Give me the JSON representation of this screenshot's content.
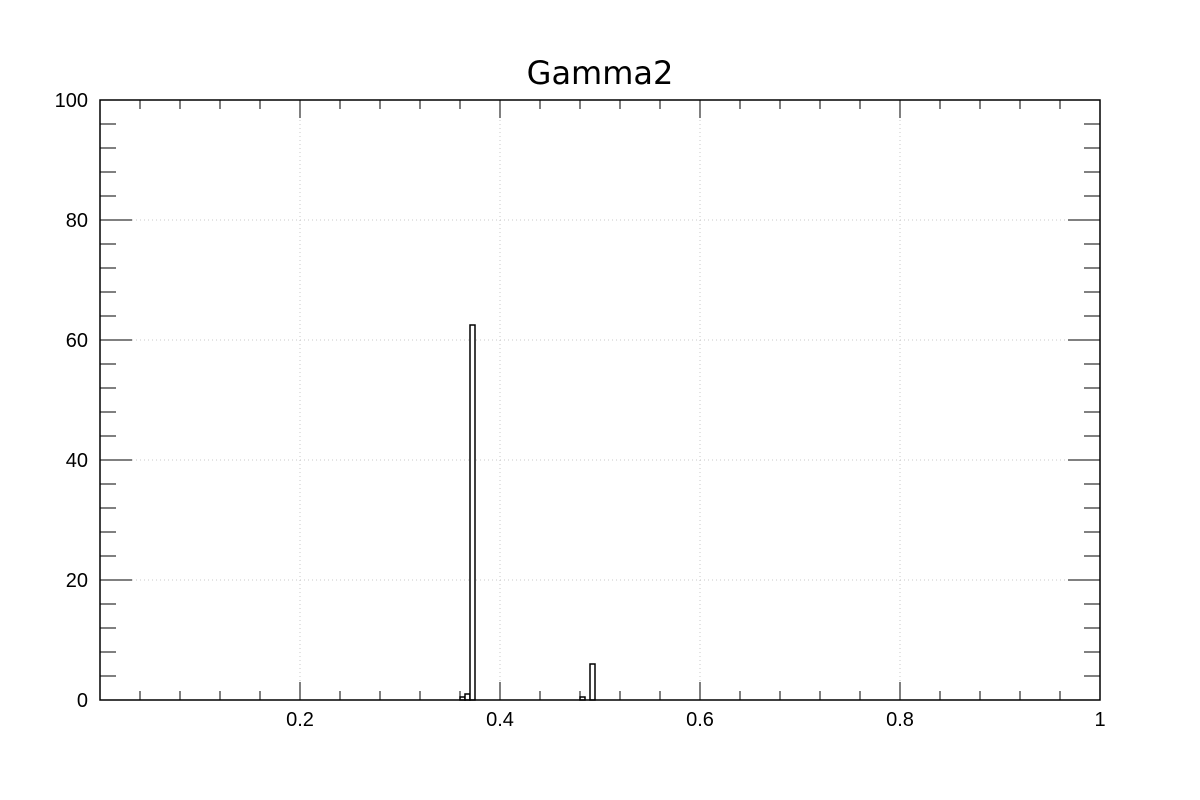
{
  "chart_data": {
    "type": "bar",
    "title": "Gamma2",
    "xlabel": "",
    "ylabel": "",
    "xlim": [
      0.0,
      1.0
    ],
    "ylim": [
      0,
      100
    ],
    "bin_width": 0.005,
    "x_ticks": [
      {
        "value": 0.2,
        "label": "0.2"
      },
      {
        "value": 0.4,
        "label": "0.4"
      },
      {
        "value": 0.6,
        "label": "0.6"
      },
      {
        "value": 0.8,
        "label": "0.8"
      },
      {
        "value": 1.0,
        "label": "1"
      }
    ],
    "y_ticks": [
      {
        "value": 0,
        "label": "0"
      },
      {
        "value": 20,
        "label": "20"
      },
      {
        "value": 40,
        "label": "40"
      },
      {
        "value": 60,
        "label": "60"
      },
      {
        "value": 80,
        "label": "80"
      },
      {
        "value": 100,
        "label": "100"
      }
    ],
    "grid": true,
    "legend": "none",
    "bins": [
      {
        "x0": 0.36,
        "x1": 0.365,
        "value": 0.5
      },
      {
        "x0": 0.365,
        "x1": 0.37,
        "value": 1
      },
      {
        "x0": 0.37,
        "x1": 0.375,
        "value": 62.5
      },
      {
        "x0": 0.48,
        "x1": 0.485,
        "value": 0.5
      },
      {
        "x0": 0.49,
        "x1": 0.495,
        "value": 6
      }
    ],
    "colors": {
      "line": "#000000",
      "fill": "#ffffff",
      "grid": "#c8c8c8"
    }
  }
}
